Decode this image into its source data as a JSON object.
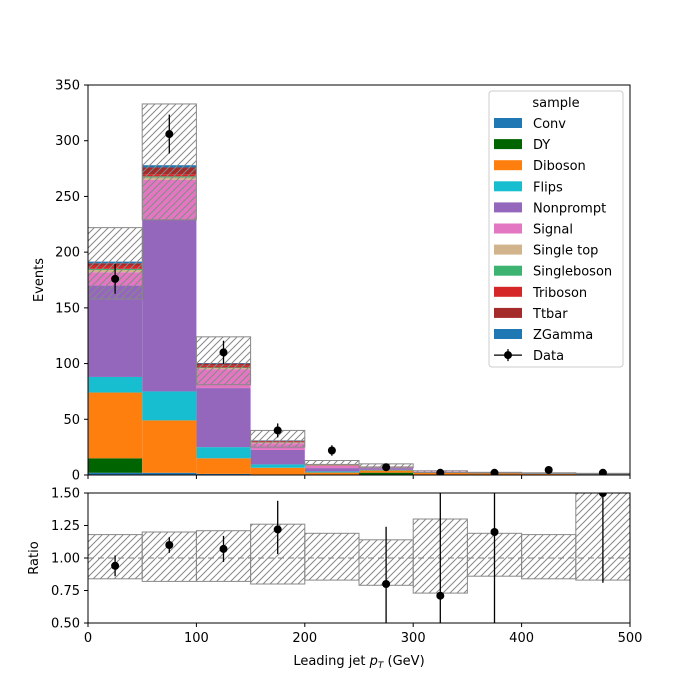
{
  "chart_data": [
    {
      "type": "bar",
      "stacked": true,
      "ylabel": "Events",
      "xlim": [
        0,
        500
      ],
      "ylim": [
        0,
        350
      ],
      "x_bin_edges": [
        0,
        50,
        100,
        150,
        200,
        250,
        300,
        350,
        400,
        450,
        500
      ],
      "yticks": [
        0,
        50,
        100,
        150,
        200,
        250,
        300,
        350
      ],
      "legend": {
        "title": "sample",
        "placement": "top-right"
      },
      "series": [
        {
          "name": "Conv",
          "color": "#1f77b4",
          "values": [
            2,
            2,
            1,
            0.5,
            0.2,
            0.1,
            0,
            0,
            0,
            0
          ]
        },
        {
          "name": "DY",
          "color": "#006400",
          "values": [
            13,
            0,
            0,
            0,
            0,
            2,
            0,
            0,
            0,
            0
          ]
        },
        {
          "name": "Diboson",
          "color": "#ff7f0e",
          "values": [
            59,
            47,
            14,
            6,
            2,
            2,
            2,
            1.5,
            1,
            0.5
          ]
        },
        {
          "name": "Flips",
          "color": "#17becf",
          "values": [
            14,
            26,
            10,
            3,
            1,
            0.5,
            0.3,
            0.2,
            0.2,
            0.2
          ]
        },
        {
          "name": "Nonprompt",
          "color": "#9467bd",
          "values": [
            82,
            154,
            53,
            13,
            3,
            1.5,
            0.5,
            0.3,
            0.3,
            0.2
          ]
        },
        {
          "name": "Signal",
          "color": "#e377c2",
          "values": [
            12,
            36,
            17,
            6,
            2,
            1,
            0.3,
            0.2,
            0.1,
            0.1
          ]
        },
        {
          "name": "Single top",
          "color": "#d2b48c",
          "values": [
            2,
            2,
            1,
            0.5,
            0.2,
            0.1,
            0,
            0,
            0,
            0
          ]
        },
        {
          "name": "Singleboson",
          "color": "#3cb371",
          "values": [
            1,
            1,
            0.5,
            0.3,
            0.1,
            0.1,
            0,
            0,
            0,
            0
          ]
        },
        {
          "name": "Triboson",
          "color": "#d62728",
          "values": [
            3,
            2,
            1.5,
            0.5,
            0.3,
            0.1,
            0,
            0,
            0,
            0
          ]
        },
        {
          "name": "Ttbar",
          "color": "#a52a2a",
          "values": [
            2,
            6,
            2,
            1,
            0.3,
            0.2,
            0,
            0,
            0,
            0
          ]
        },
        {
          "name": "ZGamma",
          "color": "#1f77b4",
          "values": [
            1.5,
            2,
            0.5,
            0.3,
            0.1,
            0.1,
            0,
            0,
            0,
            0
          ]
        }
      ],
      "uncertainty_band": {
        "low": [
          158,
          229,
          81,
          25,
          9.5,
          6.5,
          2.2,
          1.8,
          1.6,
          0.8
        ],
        "high": [
          222,
          333,
          124,
          40,
          13,
          10,
          3.8,
          2.4,
          2.0,
          1.5
        ]
      },
      "data_points": {
        "name": "Data",
        "x": [
          25,
          75,
          125,
          175,
          225,
          275,
          325,
          375,
          425,
          475
        ],
        "y": [
          176,
          306,
          110,
          40,
          22,
          7,
          2,
          2,
          4.5,
          2
        ],
        "yerr": [
          13.3,
          17.5,
          10.5,
          6.3,
          4.7,
          2.6,
          1.4,
          1.4,
          2.1,
          1.4
        ]
      }
    },
    {
      "type": "scatter",
      "xlabel": "Leading jet  p_T (GeV)",
      "ylabel": "Ratio",
      "xlim": [
        0,
        500
      ],
      "ylim": [
        0.5,
        1.5
      ],
      "xticks": [
        0,
        100,
        200,
        300,
        400,
        500
      ],
      "yticks": [
        "0.50",
        "0.75",
        "1.00",
        "1.25",
        "1.50"
      ],
      "reference_line": 1.0,
      "uncertainty_band": {
        "low": [
          0.84,
          0.82,
          0.82,
          0.8,
          0.83,
          0.79,
          0.73,
          0.86,
          0.84,
          0.83
        ],
        "high": [
          1.18,
          1.2,
          1.21,
          1.26,
          1.19,
          1.14,
          1.3,
          1.19,
          1.18,
          1.5
        ]
      },
      "points": {
        "x": [
          25,
          75,
          125,
          175,
          275,
          325,
          375,
          475
        ],
        "y": [
          0.94,
          1.1,
          1.07,
          1.22,
          0.8,
          0.71,
          1.2,
          1.5
        ],
        "yerr_low": [
          0.08,
          0.06,
          0.1,
          0.19,
          0.31,
          0.5,
          0.7,
          0.69
        ],
        "yerr_high": [
          0.08,
          0.06,
          0.1,
          0.22,
          0.44,
          0.8,
          0.7,
          0.5
        ]
      }
    }
  ]
}
